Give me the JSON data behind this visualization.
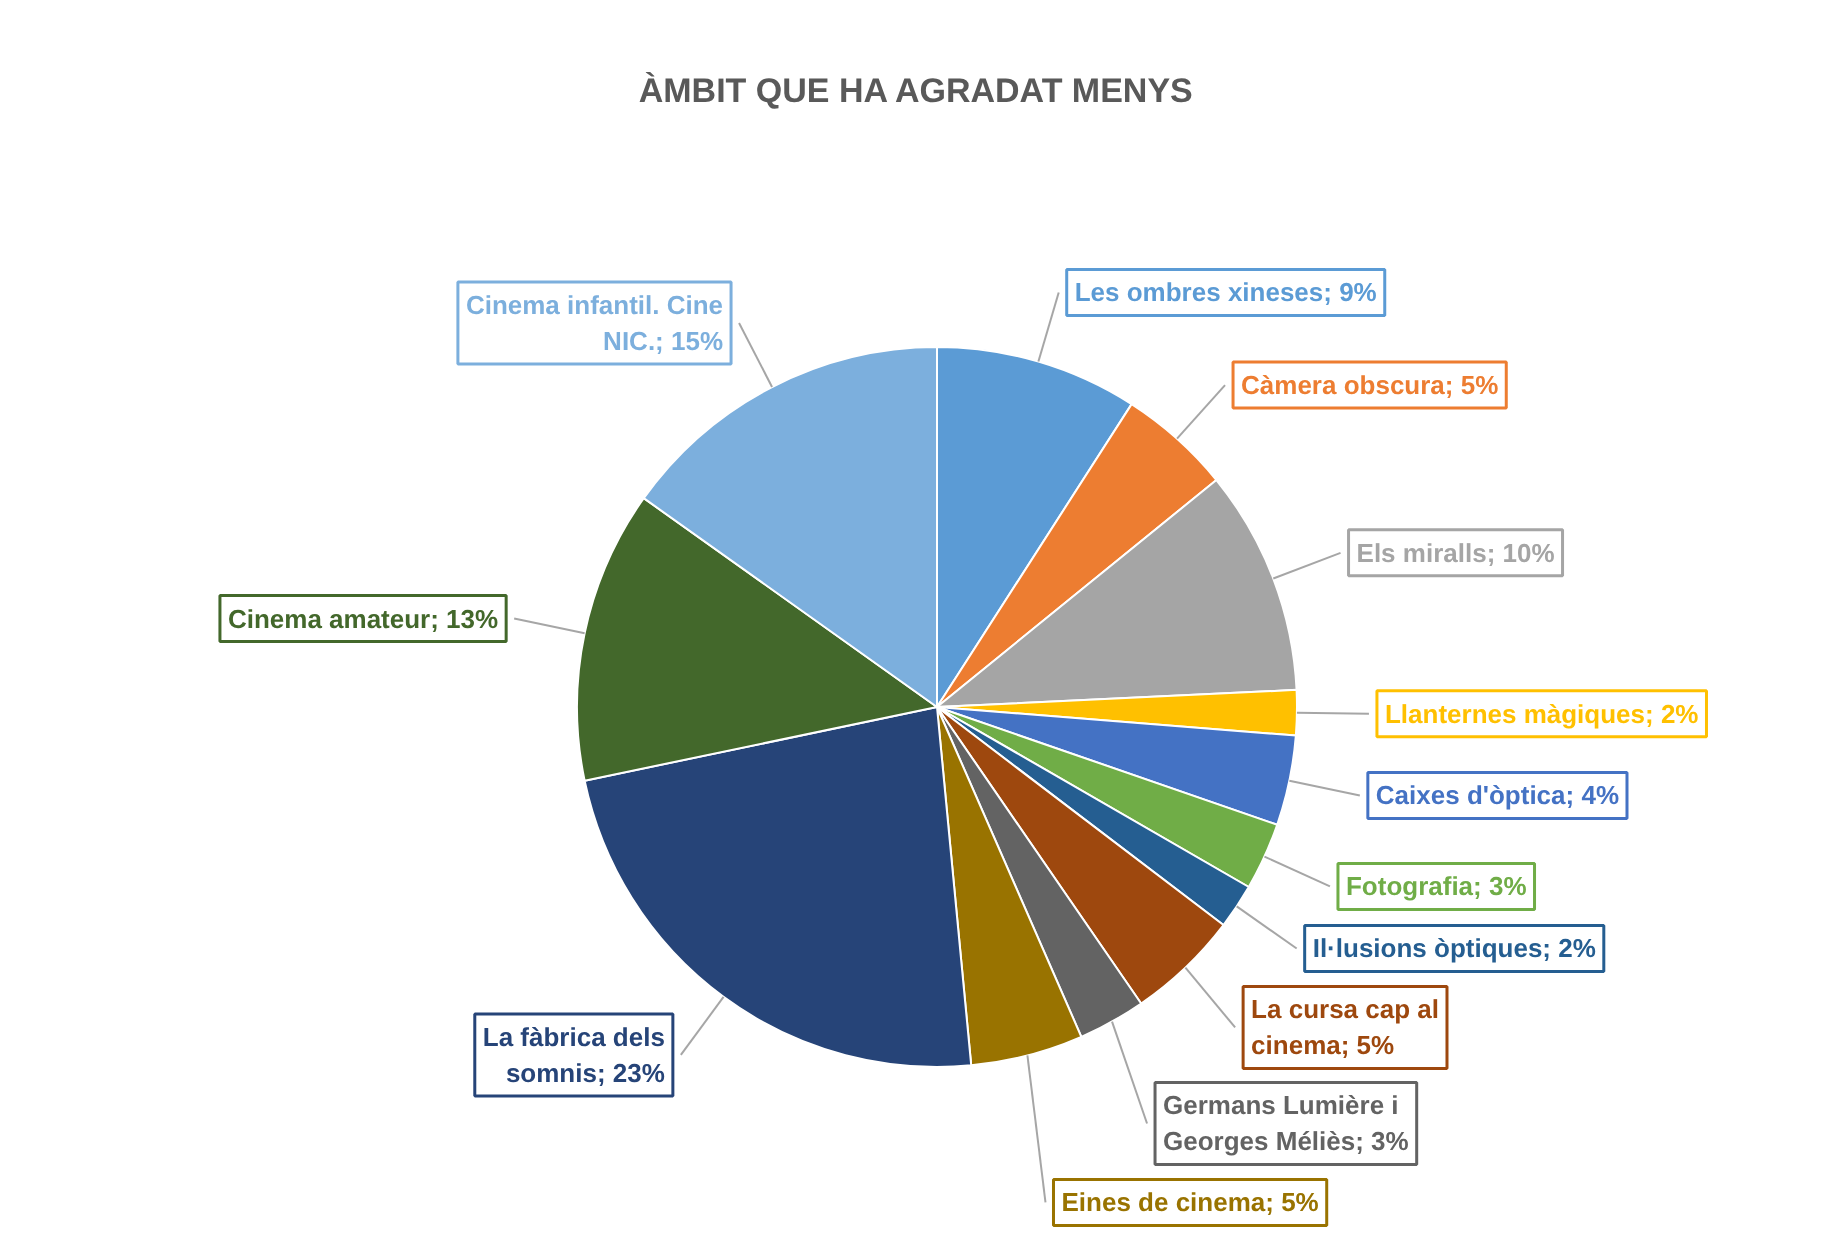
{
  "chart_data": {
    "type": "pie",
    "title": "ÀMBIT QUE HA AGRADAT MENYS",
    "categories": [
      "Les ombres xineses",
      "Càmera obscura",
      "Els miralls",
      "Llanternes màgiques",
      "Caixes d'òptica",
      "Fotografia",
      "Il·lusions òptiques",
      "La cursa cap al cinema",
      "Germans Lumière i Georges Méliès",
      "Eines de cinema",
      "La fàbrica dels somnis",
      "Cinema amateur",
      "Cinema infantil. Cine NIC."
    ],
    "values": [
      9,
      5,
      10,
      2,
      4,
      3,
      2,
      5,
      3,
      5,
      23,
      13,
      15
    ],
    "colors": [
      "#5b9bd5",
      "#ed7d31",
      "#a5a5a5",
      "#ffc000",
      "#4472c4",
      "#70ad47",
      "#255e91",
      "#9e480e",
      "#636363",
      "#997300",
      "#264478",
      "#43682b",
      "#7cafdd"
    ],
    "value_labels": [
      "9%",
      "5%",
      "10%",
      "2%",
      "4%",
      "3%",
      "2%",
      "5%",
      "3%",
      "5%",
      "23%",
      "13%",
      "15%"
    ]
  }
}
